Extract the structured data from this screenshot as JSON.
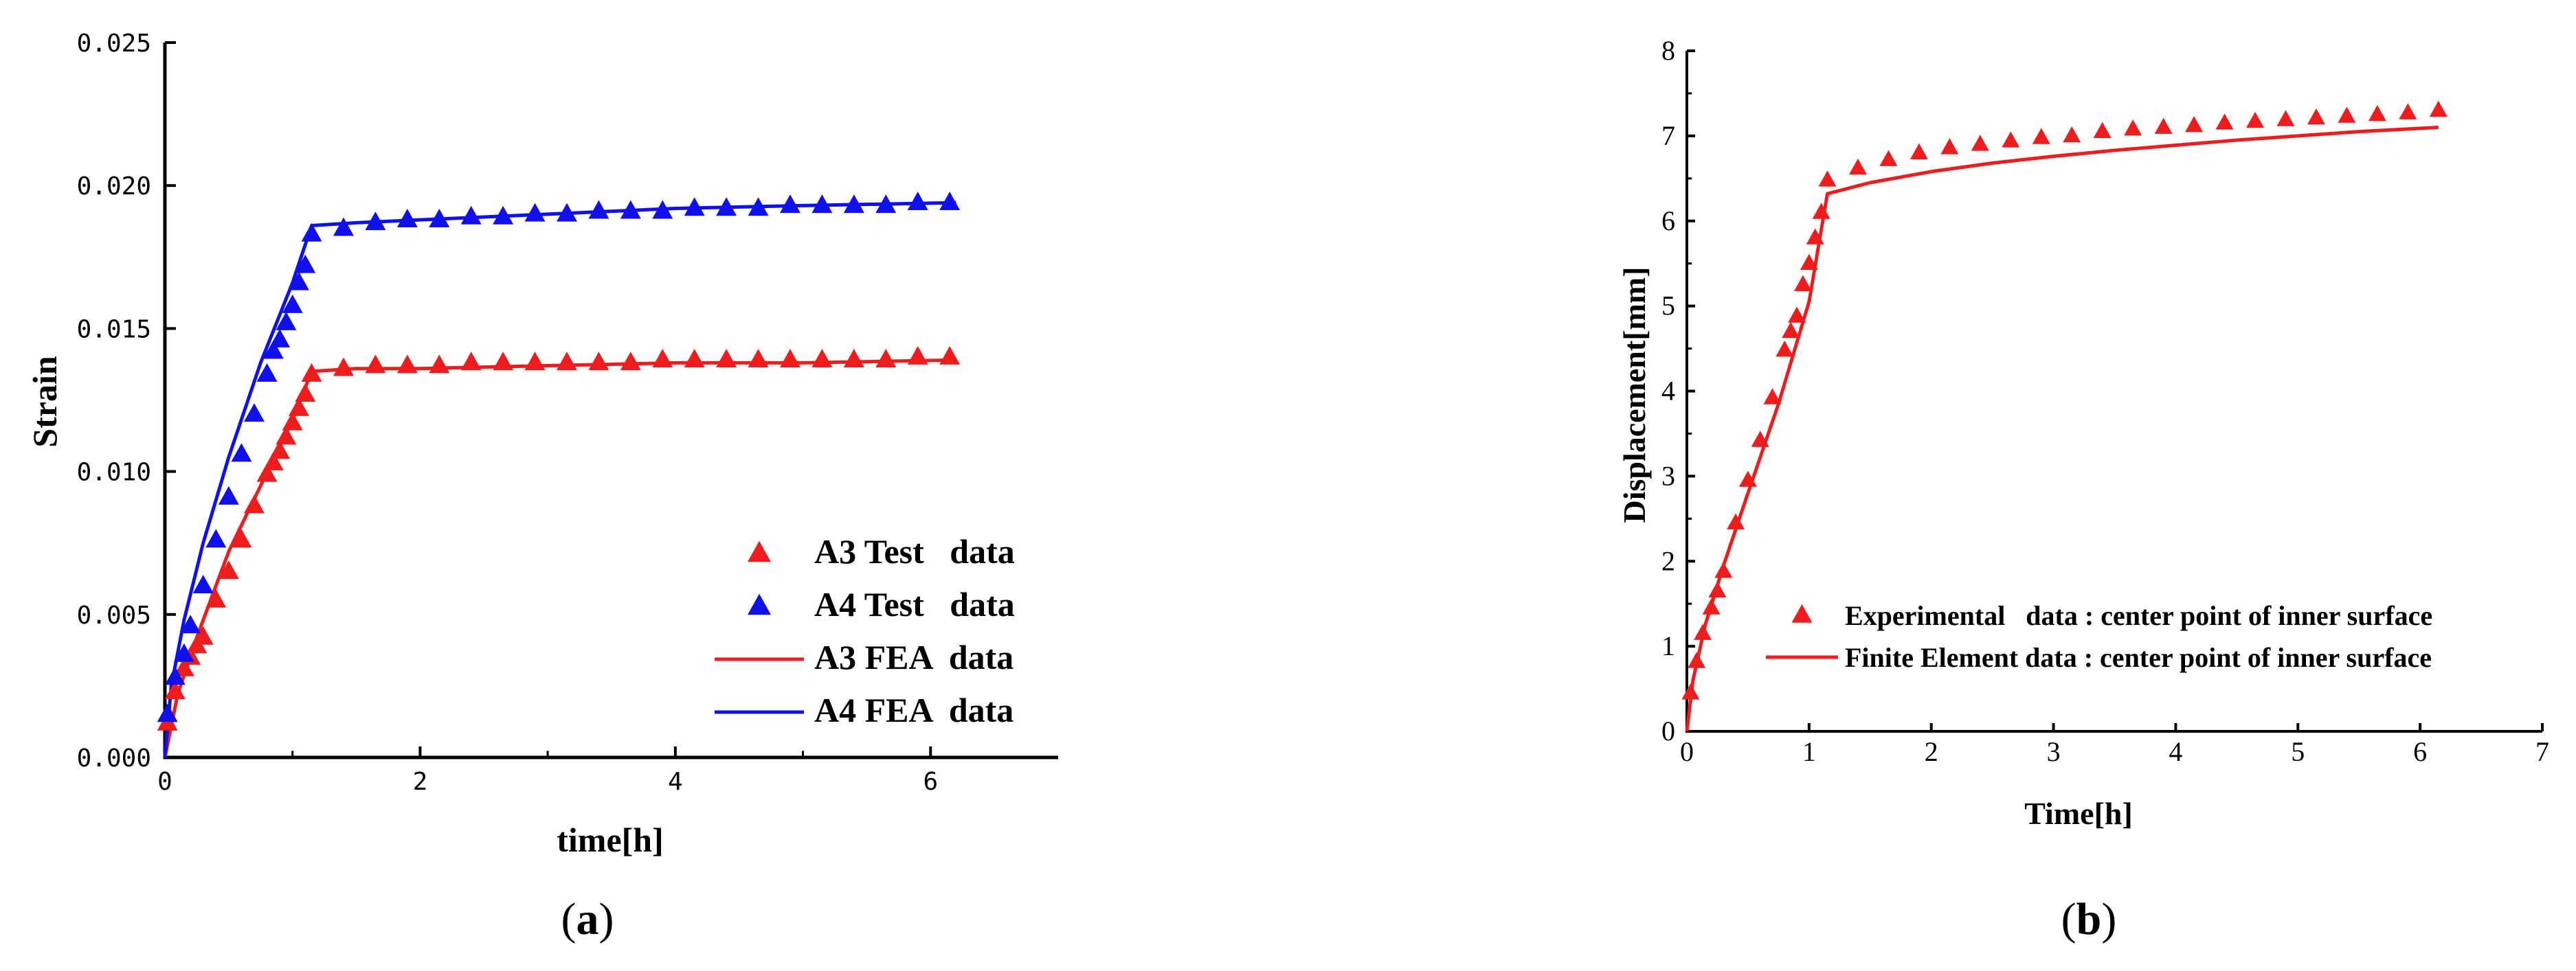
{
  "chart_data": [
    {
      "id": "a",
      "type": "line+scatter",
      "caption": {
        "open": "(",
        "letter": "a",
        "close": ")"
      },
      "title": "",
      "xlabel": "time[h]",
      "ylabel": "Strain",
      "xlim": [
        0,
        7
      ],
      "ylim": [
        0,
        0.025
      ],
      "xticks": [
        0,
        2,
        4,
        6
      ],
      "xtick_labels": [
        "0",
        "2",
        "4",
        "6"
      ],
      "yticks": [
        0,
        0.005,
        0.01,
        0.015,
        0.02,
        0.025
      ],
      "ytick_labels": [
        "0.000",
        "0.005",
        "0.010",
        "0.015",
        "0.020",
        "0.025"
      ],
      "grid": false,
      "legend_position": "lower-right",
      "series": [
        {
          "name": "A3 Test   data",
          "kind": "scatter",
          "marker": "triangle",
          "color": "#ee1c1c",
          "x": [
            0.02,
            0.08,
            0.15,
            0.2,
            0.25,
            0.3,
            0.4,
            0.5,
            0.6,
            0.7,
            0.8,
            0.85,
            0.9,
            0.95,
            1.0,
            1.05,
            1.1,
            1.15,
            1.4,
            1.65,
            1.9,
            2.15,
            2.4,
            2.65,
            2.9,
            3.15,
            3.4,
            3.65,
            3.9,
            4.15,
            4.4,
            4.65,
            4.9,
            5.15,
            5.4,
            5.65,
            5.9,
            6.15
          ],
          "y": [
            0.0012,
            0.0023,
            0.0031,
            0.0035,
            0.0039,
            0.0042,
            0.0055,
            0.0065,
            0.0076,
            0.0088,
            0.0099,
            0.0103,
            0.0107,
            0.0112,
            0.0117,
            0.0122,
            0.0127,
            0.0134,
            0.0136,
            0.0137,
            0.0137,
            0.0137,
            0.0138,
            0.0138,
            0.0138,
            0.0138,
            0.0138,
            0.0138,
            0.0139,
            0.0139,
            0.0139,
            0.0139,
            0.0139,
            0.0139,
            0.0139,
            0.0139,
            0.014,
            0.014
          ]
        },
        {
          "name": "A4 Test   data",
          "kind": "scatter",
          "marker": "triangle",
          "color": "#1010ee",
          "x": [
            0.02,
            0.08,
            0.15,
            0.2,
            0.3,
            0.4,
            0.5,
            0.6,
            0.7,
            0.8,
            0.85,
            0.9,
            0.95,
            1.0,
            1.05,
            1.1,
            1.15,
            1.4,
            1.65,
            1.9,
            2.15,
            2.4,
            2.65,
            2.9,
            3.15,
            3.4,
            3.65,
            3.9,
            4.15,
            4.4,
            4.65,
            4.9,
            5.15,
            5.4,
            5.65,
            5.9,
            6.15
          ],
          "y": [
            0.0015,
            0.0028,
            0.0036,
            0.0046,
            0.006,
            0.0076,
            0.0091,
            0.0106,
            0.012,
            0.0134,
            0.0142,
            0.0146,
            0.0152,
            0.0158,
            0.0166,
            0.0172,
            0.0183,
            0.0185,
            0.0187,
            0.0188,
            0.0188,
            0.0189,
            0.0189,
            0.019,
            0.019,
            0.0191,
            0.0191,
            0.0191,
            0.0192,
            0.0192,
            0.0192,
            0.0193,
            0.0193,
            0.0193,
            0.0193,
            0.0194,
            0.0194
          ]
        },
        {
          "name": "A3 FEA  data",
          "kind": "line",
          "color": "#ee1c1c",
          "x": [
            0,
            0.1,
            0.25,
            0.5,
            0.75,
            1.0,
            1.15,
            1.5,
            2,
            3,
            4,
            5,
            6.2
          ],
          "y": [
            0,
            0.0022,
            0.0042,
            0.0072,
            0.0095,
            0.0118,
            0.0135,
            0.0136,
            0.0136,
            0.0137,
            0.0138,
            0.0138,
            0.0139
          ]
        },
        {
          "name": "A4 FEA  data",
          "kind": "line",
          "color": "#1010ee",
          "x": [
            0,
            0.05,
            0.15,
            0.3,
            0.5,
            0.75,
            1.0,
            1.15,
            1.5,
            2,
            3,
            4,
            5,
            6.2
          ],
          "y": [
            0,
            0.0025,
            0.0048,
            0.0075,
            0.0105,
            0.0138,
            0.0166,
            0.0186,
            0.0187,
            0.0188,
            0.019,
            0.0192,
            0.0193,
            0.0194
          ]
        }
      ]
    },
    {
      "id": "b",
      "type": "line+scatter",
      "caption": {
        "open": "(",
        "letter": "b",
        "close": ")"
      },
      "title": "",
      "xlabel": "Time[h]",
      "ylabel": "Displacement[mm]",
      "xlim": [
        0,
        7
      ],
      "ylim": [
        0,
        8
      ],
      "xticks": [
        0,
        1,
        2,
        3,
        4,
        5,
        6,
        7
      ],
      "xtick_labels": [
        "0",
        "1",
        "2",
        "3",
        "4",
        "5",
        "6",
        "7"
      ],
      "yticks": [
        0,
        1,
        2,
        3,
        4,
        5,
        6,
        7,
        8
      ],
      "ytick_labels": [
        "0",
        "1",
        "2",
        "3",
        "4",
        "5",
        "6",
        "7",
        "8"
      ],
      "grid": false,
      "legend_position": "lower-right",
      "series": [
        {
          "name": "Experimental   data : center point of inner surface",
          "kind": "scatter",
          "marker": "triangle",
          "color": "#ee1c1c",
          "x": [
            0.03,
            0.08,
            0.13,
            0.2,
            0.25,
            0.3,
            0.4,
            0.5,
            0.6,
            0.7,
            0.8,
            0.85,
            0.9,
            0.95,
            1.0,
            1.05,
            1.1,
            1.15,
            1.4,
            1.65,
            1.9,
            2.15,
            2.4,
            2.65,
            2.9,
            3.15,
            3.4,
            3.65,
            3.9,
            4.15,
            4.4,
            4.65,
            4.9,
            5.15,
            5.4,
            5.65,
            5.9,
            6.15
          ],
          "y": [
            0.45,
            0.82,
            1.15,
            1.45,
            1.65,
            1.88,
            2.45,
            2.95,
            3.42,
            3.92,
            4.48,
            4.7,
            4.88,
            5.25,
            5.5,
            5.8,
            6.1,
            6.48,
            6.62,
            6.72,
            6.8,
            6.86,
            6.9,
            6.94,
            6.98,
            7.0,
            7.05,
            7.08,
            7.1,
            7.12,
            7.15,
            7.17,
            7.19,
            7.21,
            7.23,
            7.25,
            7.27,
            7.3
          ]
        },
        {
          "name": "Finite Element data : center point of inner surface",
          "kind": "line",
          "color": "#ee1c1c",
          "x": [
            0,
            0.05,
            0.15,
            0.3,
            0.5,
            0.75,
            1.0,
            1.15,
            1.5,
            2,
            2.5,
            3,
            3.5,
            4,
            4.5,
            5,
            5.5,
            6.15
          ],
          "y": [
            0,
            0.6,
            1.25,
            1.95,
            2.8,
            3.85,
            5.05,
            6.32,
            6.45,
            6.58,
            6.68,
            6.76,
            6.83,
            6.89,
            6.95,
            7.0,
            7.05,
            7.1
          ]
        }
      ]
    }
  ]
}
